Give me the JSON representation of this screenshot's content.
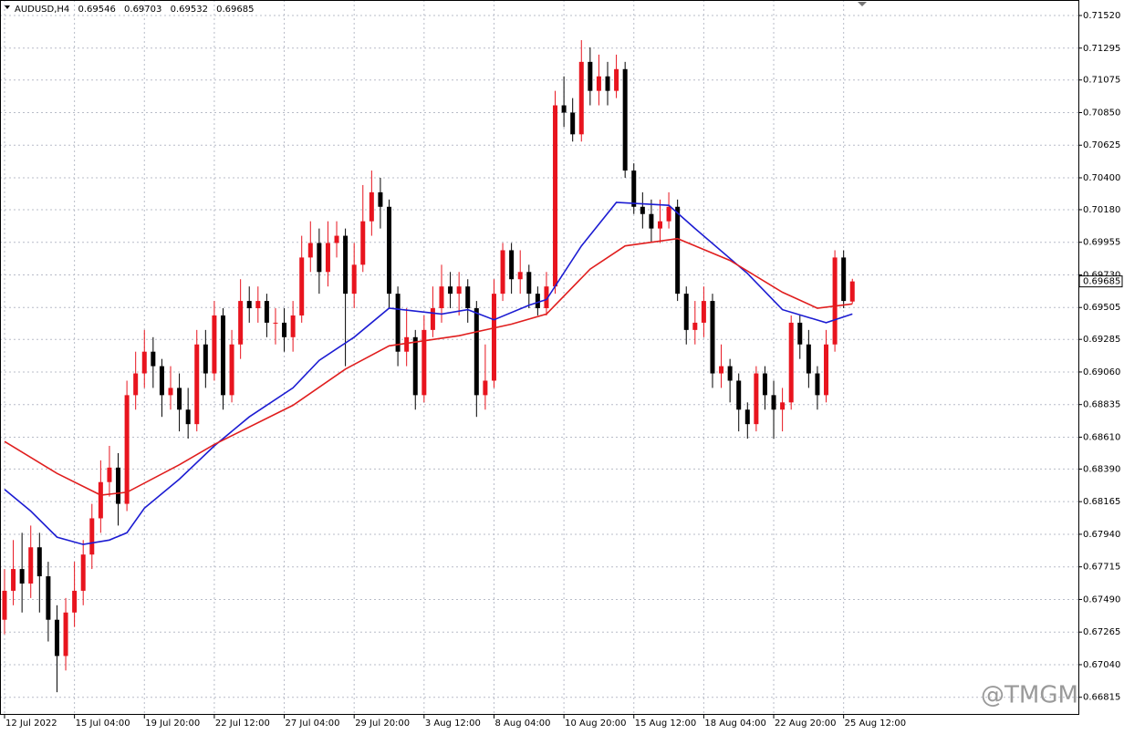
{
  "chart_data": {
    "type": "candlestick",
    "title": "AUDUSD,H4",
    "watermark": "@TMGM",
    "xlim": [
      -0.52,
      122.86
    ],
    "xticks": [
      {
        "value": 0,
        "label": "12 Jul 2022"
      },
      {
        "value": 8,
        "label": "15 Jul 04:00"
      },
      {
        "value": 16,
        "label": "19 Jul 20:00"
      },
      {
        "value": 24,
        "label": "22 Jul 12:00"
      },
      {
        "value": 32,
        "label": "27 Jul 04:00"
      },
      {
        "value": 40,
        "label": "29 Jul 20:00"
      },
      {
        "value": 48,
        "label": "3 Aug 12:00"
      },
      {
        "value": 56,
        "label": "8 Aug 04:00"
      },
      {
        "value": 64,
        "label": "10 Aug 20:00"
      },
      {
        "value": 72,
        "label": "15 Aug 12:00"
      },
      {
        "value": 80,
        "label": "18 Aug 04:00"
      },
      {
        "value": 88,
        "label": "22 Aug 20:00"
      },
      {
        "value": 96,
        "label": "25 Aug 12:00"
      }
    ],
    "ylim": [
      0.667,
      0.71627
    ],
    "yticks": [
      {
        "value": 0.7152,
        "label": "0.71520"
      },
      {
        "value": 0.71295,
        "label": "0.71295"
      },
      {
        "value": 0.71075,
        "label": "0.71075"
      },
      {
        "value": 0.7085,
        "label": "0.70850"
      },
      {
        "value": 0.70625,
        "label": "0.70625"
      },
      {
        "value": 0.704,
        "label": "0.70400"
      },
      {
        "value": 0.7018,
        "label": "0.70180"
      },
      {
        "value": 0.69955,
        "label": "0.69955"
      },
      {
        "value": 0.6973,
        "label": "0.69730"
      },
      {
        "value": 0.69505,
        "label": "0.69505"
      },
      {
        "value": 0.69285,
        "label": "0.69285"
      },
      {
        "value": 0.6906,
        "label": "0.69060"
      },
      {
        "value": 0.68835,
        "label": "0.68835"
      },
      {
        "value": 0.6861,
        "label": "0.68610"
      },
      {
        "value": 0.6839,
        "label": "0.68390"
      },
      {
        "value": 0.68165,
        "label": "0.68165"
      },
      {
        "value": 0.6794,
        "label": "0.67940"
      },
      {
        "value": 0.67715,
        "label": "0.67715"
      },
      {
        "value": 0.6749,
        "label": "0.67490"
      },
      {
        "value": 0.67265,
        "label": "0.67265"
      },
      {
        "value": 0.6704,
        "label": "0.67040"
      },
      {
        "value": 0.66815,
        "label": "0.66815"
      }
    ],
    "grid": true,
    "up_color": "#e8141e",
    "down_color": "#000000",
    "open": [
      0.6735,
      0.6755,
      0.677,
      0.676,
      0.6785,
      0.6765,
      0.6735,
      0.671,
      0.674,
      0.6755,
      0.678,
      0.6805,
      0.683,
      0.684,
      0.6815,
      0.689,
      0.6905,
      0.692,
      0.691,
      0.689,
      0.6895,
      0.688,
      0.687,
      0.6925,
      0.6905,
      0.6945,
      0.689,
      0.6925,
      0.6955,
      0.695,
      0.6955,
      0.694,
      0.694,
      0.693,
      0.6945,
      0.6985,
      0.6995,
      0.6975,
      0.6995,
      0.7,
      0.696,
      0.698,
      0.701,
      0.703,
      0.702,
      0.696,
      0.692,
      0.693,
      0.689,
      0.6935,
      0.695,
      0.6965,
      0.696,
      0.6965,
      0.695,
      0.689,
      0.69,
      0.696,
      0.699,
      0.697,
      0.6975,
      0.696,
      0.695,
      0.6965,
      0.709,
      0.7085,
      0.707,
      0.712,
      0.71,
      0.711,
      0.71,
      0.7115,
      0.7045,
      0.702,
      0.7015,
      0.7005,
      0.701,
      0.702,
      0.696,
      0.6935,
      0.694,
      0.6955,
      0.6905,
      0.691,
      0.69,
      0.688,
      0.687,
      0.6905,
      0.689,
      0.688,
      0.6885,
      0.694,
      0.6925,
      0.6905,
      0.689,
      0.6925,
      0.6985,
      0.69546
    ],
    "high": [
      0.677,
      0.679,
      0.6795,
      0.68,
      0.6795,
      0.6775,
      0.6745,
      0.675,
      0.6775,
      0.679,
      0.6815,
      0.6845,
      0.6855,
      0.685,
      0.69,
      0.692,
      0.6935,
      0.693,
      0.6915,
      0.691,
      0.6905,
      0.6895,
      0.6935,
      0.6935,
      0.6955,
      0.695,
      0.6935,
      0.697,
      0.6965,
      0.6965,
      0.696,
      0.695,
      0.695,
      0.6955,
      0.7,
      0.701,
      0.7005,
      0.701,
      0.701,
      0.7005,
      0.6995,
      0.7035,
      0.7045,
      0.704,
      0.7025,
      0.6965,
      0.695,
      0.6935,
      0.6945,
      0.6965,
      0.698,
      0.6975,
      0.6975,
      0.697,
      0.6955,
      0.6925,
      0.697,
      0.6995,
      0.6995,
      0.699,
      0.698,
      0.6965,
      0.6975,
      0.71,
      0.711,
      0.7095,
      0.7135,
      0.713,
      0.7125,
      0.712,
      0.7125,
      0.712,
      0.705,
      0.703,
      0.7025,
      0.7025,
      0.703,
      0.7025,
      0.6965,
      0.6955,
      0.6965,
      0.696,
      0.6925,
      0.6915,
      0.6905,
      0.6885,
      0.691,
      0.691,
      0.69,
      0.6895,
      0.6945,
      0.6945,
      0.6935,
      0.691,
      0.6935,
      0.699,
      0.699,
      0.69703
    ],
    "low": [
      0.6725,
      0.6745,
      0.674,
      0.675,
      0.674,
      0.672,
      0.6685,
      0.67,
      0.673,
      0.6745,
      0.677,
      0.6795,
      0.682,
      0.68,
      0.681,
      0.688,
      0.6895,
      0.6895,
      0.6875,
      0.688,
      0.6865,
      0.686,
      0.6865,
      0.6895,
      0.69,
      0.688,
      0.6885,
      0.6915,
      0.694,
      0.694,
      0.693,
      0.6925,
      0.692,
      0.692,
      0.694,
      0.6975,
      0.696,
      0.6965,
      0.6985,
      0.691,
      0.695,
      0.6975,
      0.7,
      0.7005,
      0.695,
      0.691,
      0.691,
      0.688,
      0.6885,
      0.693,
      0.694,
      0.695,
      0.6945,
      0.694,
      0.6875,
      0.688,
      0.6895,
      0.6955,
      0.696,
      0.696,
      0.695,
      0.6945,
      0.6945,
      0.696,
      0.7075,
      0.7065,
      0.7065,
      0.709,
      0.709,
      0.709,
      0.7095,
      0.704,
      0.7015,
      0.7005,
      0.6995,
      0.6995,
      0.7005,
      0.6955,
      0.6925,
      0.6925,
      0.693,
      0.6895,
      0.6895,
      0.6885,
      0.6865,
      0.686,
      0.6865,
      0.688,
      0.686,
      0.6865,
      0.688,
      0.6915,
      0.6895,
      0.688,
      0.6885,
      0.692,
      0.695,
      0.69532
    ],
    "close": [
      0.6755,
      0.677,
      0.676,
      0.6785,
      0.6765,
      0.6735,
      0.671,
      0.674,
      0.6755,
      0.678,
      0.6805,
      0.683,
      0.684,
      0.6815,
      0.689,
      0.6905,
      0.692,
      0.691,
      0.689,
      0.6895,
      0.688,
      0.687,
      0.6925,
      0.6905,
      0.6945,
      0.689,
      0.6925,
      0.6955,
      0.695,
      0.6955,
      0.694,
      0.694,
      0.693,
      0.6945,
      0.6985,
      0.6995,
      0.6975,
      0.6995,
      0.7,
      0.696,
      0.698,
      0.701,
      0.703,
      0.702,
      0.696,
      0.692,
      0.693,
      0.689,
      0.6935,
      0.695,
      0.6965,
      0.696,
      0.6965,
      0.695,
      0.689,
      0.69,
      0.696,
      0.699,
      0.697,
      0.6975,
      0.696,
      0.695,
      0.6965,
      0.709,
      0.7085,
      0.707,
      0.712,
      0.71,
      0.711,
      0.71,
      0.7115,
      0.7045,
      0.702,
      0.7015,
      0.7005,
      0.701,
      0.702,
      0.696,
      0.6935,
      0.694,
      0.6955,
      0.6905,
      0.691,
      0.69,
      0.688,
      0.687,
      0.6905,
      0.689,
      0.688,
      0.6885,
      0.694,
      0.6925,
      0.6905,
      0.689,
      0.6925,
      0.6985,
      0.6955,
      0.69685
    ],
    "lines": [
      {
        "color": "#1c1cd2",
        "x": [
          0,
          3,
          6,
          9,
          12,
          14,
          16,
          20,
          24,
          28,
          33,
          36,
          40,
          44,
          47,
          50,
          53,
          56,
          60,
          62,
          66,
          70,
          76,
          79,
          85,
          89,
          94,
          97
        ],
        "values": [
          0.6825,
          0.681,
          0.6792,
          0.6787,
          0.679,
          0.6795,
          0.6812,
          0.6832,
          0.6855,
          0.6875,
          0.6895,
          0.6914,
          0.693,
          0.695,
          0.6948,
          0.6946,
          0.6949,
          0.6942,
          0.6952,
          0.6956,
          0.6993,
          0.7023,
          0.7021,
          0.7005,
          0.6974,
          0.6949,
          0.694,
          0.6946
        ]
      },
      {
        "color": "#e01e1e",
        "x": [
          0,
          6,
          11,
          14,
          20,
          24,
          33,
          39,
          44,
          52,
          58,
          62,
          67,
          71,
          77,
          83,
          89,
          93,
          97
        ],
        "values": [
          0.6858,
          0.6836,
          0.6821,
          0.6823,
          0.6842,
          0.6856,
          0.6883,
          0.6908,
          0.6924,
          0.6931,
          0.6939,
          0.6946,
          0.6977,
          0.6993,
          0.6998,
          0.6983,
          0.6961,
          0.695,
          0.6953
        ]
      }
    ]
  }
}
